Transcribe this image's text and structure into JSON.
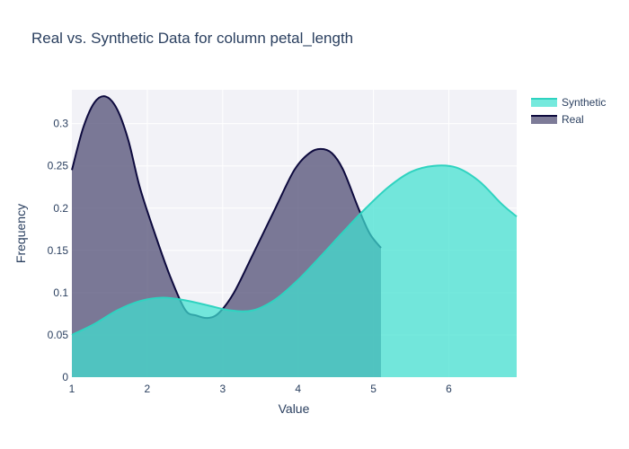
{
  "chart_data": {
    "type": "area",
    "title": "Real vs. Synthetic Data for column petal_length",
    "xlabel": "Value",
    "ylabel": "Frequency",
    "xlim": [
      1,
      6.9
    ],
    "ylim": [
      0,
      0.34
    ],
    "xticks": [
      1,
      2,
      3,
      4,
      5,
      6
    ],
    "yticks": [
      0,
      0.05,
      0.1,
      0.15,
      0.2,
      0.25,
      0.3
    ],
    "ytick_labels": [
      "0",
      "0.05",
      "0.1",
      "0.15",
      "0.2",
      "0.25",
      "0.3"
    ],
    "grid": true,
    "legend_position": "top-right",
    "series": [
      {
        "name": "Synthetic",
        "fill_color": "#40e0d0",
        "line_color": "#2fd3c0",
        "fill_opacity": 0.72,
        "x": [
          1.0,
          1.3,
          1.6,
          1.9,
          2.2,
          2.5,
          2.8,
          3.1,
          3.4,
          3.7,
          4.0,
          4.3,
          4.6,
          4.9,
          5.2,
          5.5,
          5.8,
          6.1,
          6.4,
          6.7,
          6.9
        ],
        "y": [
          0.05,
          0.063,
          0.079,
          0.09,
          0.094,
          0.091,
          0.085,
          0.079,
          0.079,
          0.092,
          0.115,
          0.143,
          0.172,
          0.2,
          0.225,
          0.243,
          0.25,
          0.248,
          0.232,
          0.205,
          0.19
        ]
      },
      {
        "name": "Real",
        "fill_color": "#4b4870",
        "line_color": "#0d0a3e",
        "fill_opacity": 0.72,
        "x": [
          1.0,
          1.15,
          1.3,
          1.45,
          1.6,
          1.75,
          1.9,
          2.1,
          2.3,
          2.5,
          2.65,
          2.8,
          2.95,
          3.15,
          3.4,
          3.7,
          3.95,
          4.15,
          4.3,
          4.45,
          4.6,
          4.8,
          4.95,
          5.1
        ],
        "y": [
          0.245,
          0.295,
          0.325,
          0.332,
          0.317,
          0.28,
          0.225,
          0.17,
          0.12,
          0.08,
          0.073,
          0.07,
          0.076,
          0.1,
          0.145,
          0.2,
          0.245,
          0.265,
          0.27,
          0.265,
          0.245,
          0.2,
          0.17,
          0.153
        ]
      }
    ]
  }
}
